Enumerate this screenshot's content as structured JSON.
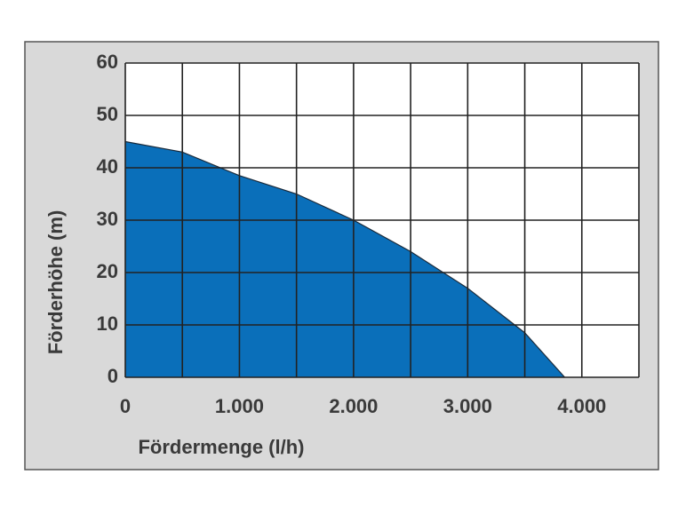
{
  "chart_data": {
    "type": "area",
    "x_label": "Fördermenge (l/h)",
    "y_label": "Förderhöhe (m)",
    "x": [
      0,
      500,
      1000,
      1500,
      2000,
      2500,
      3000,
      3500,
      3850
    ],
    "values": [
      45,
      43,
      38.5,
      35,
      30,
      24,
      17,
      8.5,
      0
    ],
    "color": "#0a6fba",
    "xlim": [
      0,
      4500
    ],
    "xticks": [
      0,
      {
        "value": 1000,
        "label": "1.000"
      },
      {
        "value": 2000,
        "label": "2.000"
      },
      {
        "value": 3000,
        "label": "3.000"
      },
      {
        "value": 4000,
        "label": "4.000"
      }
    ],
    "xminor": [
      500,
      1500,
      2500,
      3500,
      4500
    ],
    "ylim": [
      0,
      60
    ],
    "yticks": [
      0,
      10,
      20,
      30,
      40,
      50,
      60
    ],
    "grid": true
  }
}
